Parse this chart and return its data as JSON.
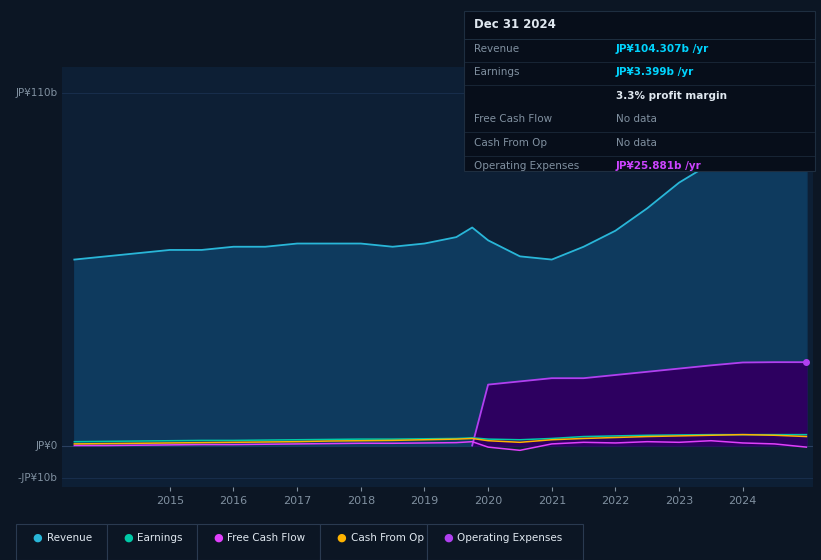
{
  "bg_color": "#0c1624",
  "plot_bg_color": "#0d1f35",
  "years": [
    2013.5,
    2014.0,
    2014.5,
    2015.0,
    2015.5,
    2016.0,
    2016.5,
    2017.0,
    2017.5,
    2018.0,
    2018.5,
    2019.0,
    2019.5,
    2019.75,
    2020.0,
    2020.5,
    2021.0,
    2021.5,
    2022.0,
    2022.5,
    2023.0,
    2023.5,
    2024.0,
    2024.5,
    2025.0
  ],
  "revenue": [
    58,
    59,
    60,
    61,
    61,
    62,
    62,
    63,
    63,
    63,
    62,
    63,
    65,
    68,
    64,
    59,
    58,
    62,
    67,
    74,
    82,
    88,
    93,
    100,
    104
  ],
  "earnings": [
    1.2,
    1.3,
    1.4,
    1.5,
    1.6,
    1.6,
    1.7,
    1.8,
    1.9,
    2.0,
    2.0,
    2.1,
    2.2,
    2.4,
    2.0,
    1.8,
    2.2,
    2.8,
    3.0,
    3.2,
    3.3,
    3.4,
    3.4,
    3.4,
    3.4
  ],
  "free_cash_flow": [
    0.0,
    0.0,
    0.1,
    0.2,
    0.3,
    0.3,
    0.4,
    0.5,
    0.6,
    0.7,
    0.7,
    0.8,
    0.9,
    1.2,
    -0.5,
    -1.5,
    0.5,
    1.0,
    0.8,
    1.2,
    1.0,
    1.5,
    0.8,
    0.5,
    -0.5
  ],
  "cash_from_op": [
    0.5,
    0.6,
    0.7,
    0.8,
    0.9,
    1.0,
    1.1,
    1.2,
    1.4,
    1.5,
    1.6,
    1.8,
    2.0,
    2.2,
    1.5,
    1.0,
    1.8,
    2.2,
    2.5,
    2.8,
    3.0,
    3.2,
    3.4,
    3.2,
    2.8
  ],
  "op_expenses_years": [
    2019.75,
    2020.0,
    2020.5,
    2021.0,
    2021.5,
    2022.0,
    2022.5,
    2023.0,
    2023.5,
    2024.0,
    2024.5,
    2025.0
  ],
  "op_expenses": [
    0.0,
    19,
    20,
    21,
    21,
    22,
    23,
    24,
    25,
    25.9,
    26,
    26
  ],
  "xlim_min": 2013.3,
  "xlim_max": 2025.1,
  "ylim_min": -13,
  "ylim_max": 118,
  "ytick_values": [
    110,
    0,
    -10
  ],
  "ytick_labels": [
    "JP¥110b",
    "JP¥0",
    "-JP¥10b"
  ],
  "xtick_values": [
    2015,
    2016,
    2017,
    2018,
    2019,
    2020,
    2021,
    2022,
    2023,
    2024
  ],
  "xtick_labels": [
    "2015",
    "2016",
    "2017",
    "2018",
    "2019",
    "2020",
    "2021",
    "2022",
    "2023",
    "2024"
  ],
  "revenue_color": "#29b6d8",
  "revenue_fill": "#0e3a5e",
  "earnings_color": "#00c9a7",
  "free_cash_flow_color": "#e040fb",
  "cash_from_op_color": "#ffb300",
  "op_expenses_color": "#b040f0",
  "op_expenses_fill": "#2d0060",
  "grid_color": "#1a3050",
  "text_color": "#8090a0",
  "bg_color2": "#0a1422",
  "info_bg": "#070e1a",
  "info_border": "#1e2e40",
  "highlight_cyan": "#00d4ff",
  "highlight_purple": "#cc44ff",
  "white": "#e0e8f0",
  "legend_items": [
    "Revenue",
    "Earnings",
    "Free Cash Flow",
    "Cash From Op",
    "Operating Expenses"
  ],
  "legend_colors": [
    "#29b6d8",
    "#00c9a7",
    "#e040fb",
    "#ffb300",
    "#b040f0"
  ]
}
